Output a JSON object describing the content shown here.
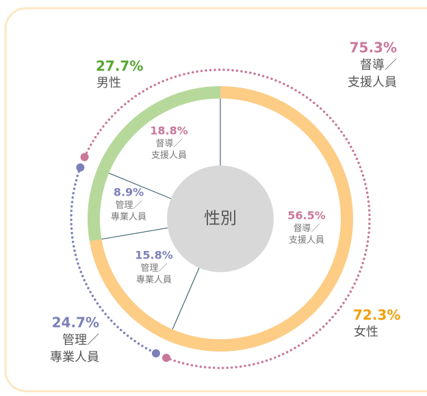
{
  "chart_data": {
    "type": "pie",
    "center_label": "性別",
    "outer": {
      "categories": [
        "男性",
        "女性"
      ],
      "values": [
        27.7,
        72.3
      ],
      "value_labels": [
        "27.7%",
        "72.3%"
      ],
      "colors": [
        "#b6d99b",
        "#fdcc85"
      ],
      "label_colors": [
        "#58a534",
        "#f0a00c"
      ]
    },
    "inner": {
      "categories": [
        "督導／支援人員",
        "管理／專業人員",
        "管理／專業人員",
        "督導／支援人員"
      ],
      "values": [
        18.8,
        8.9,
        15.8,
        56.5
      ],
      "value_labels": [
        "18.8%",
        "8.9%",
        "15.8%",
        "56.5%"
      ],
      "label_colors": [
        "#c9779b",
        "#7b80b8",
        "#7b80b8",
        "#c9779b"
      ]
    },
    "roles": {
      "categories": [
        "管理／專業人員",
        "督導／支援人員"
      ],
      "values": [
        24.7,
        75.3
      ],
      "value_labels": [
        "24.7%",
        "75.3%"
      ],
      "colors": [
        "#7b80b8",
        "#c9779b"
      ]
    }
  }
}
